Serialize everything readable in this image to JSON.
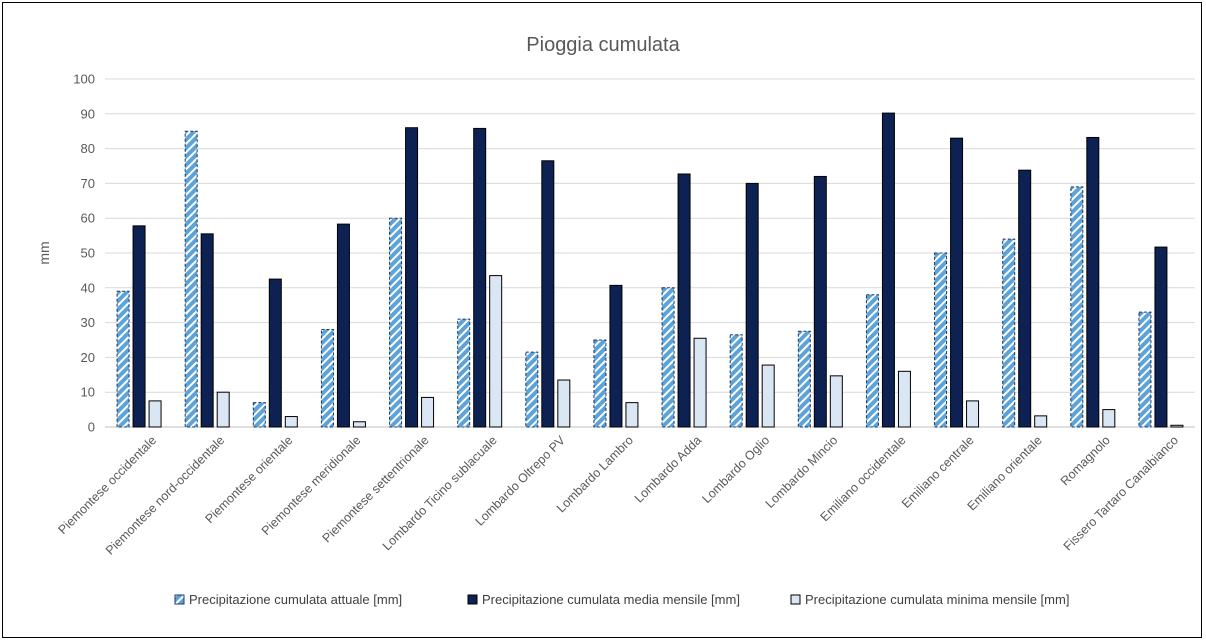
{
  "chart_data": {
    "type": "bar",
    "title": "Pioggia cumulata",
    "xlabel": "",
    "ylabel": "mm",
    "ylim": [
      0,
      100
    ],
    "yticks": [
      0,
      10,
      20,
      30,
      40,
      50,
      60,
      70,
      80,
      90,
      100
    ],
    "grid": true,
    "legend_position": "bottom",
    "categories": [
      "Piemontese occidentale",
      "Piemontese nord-occidentale",
      "Piemontese orientale",
      "Piemontese meridionale",
      "Piemontese settentrionale",
      "Lombardo Ticino sublacuale",
      "Lombardo Oltrepo PV",
      "Lombardo Lambro",
      "Lombardo Adda",
      "Lombardo Oglio",
      "Lombardo Mincio",
      "Emiliano occidentale",
      "Emiliano centrale",
      "Emiliano orientale",
      "Romagnolo",
      "Fissero Tartaro Canalbianco"
    ],
    "series": [
      {
        "name": "Precipitazione cumulata attuale [mm]",
        "pattern": "hatched",
        "color": "#5ba3d9",
        "values": [
          39,
          85,
          7,
          28,
          60,
          31,
          21.5,
          25,
          40,
          26.5,
          27.5,
          38,
          50,
          54,
          69,
          33
        ]
      },
      {
        "name": "Precipitazione cumulata media mensile [mm]",
        "pattern": "solid",
        "color": "#0d2252",
        "values": [
          57.8,
          55.5,
          42.5,
          58.3,
          86,
          85.8,
          76.5,
          40.7,
          72.7,
          70,
          72,
          90.2,
          83,
          73.8,
          83.2,
          51.7
        ]
      },
      {
        "name": "Precipitazione cumulata minima mensile [mm]",
        "pattern": "solid",
        "color": "#dbe6f4",
        "values": [
          7.5,
          10,
          3,
          1.5,
          8.5,
          43.5,
          13.5,
          7,
          25.5,
          17.8,
          14.7,
          16,
          7.5,
          3.2,
          5,
          0.5
        ]
      }
    ]
  }
}
